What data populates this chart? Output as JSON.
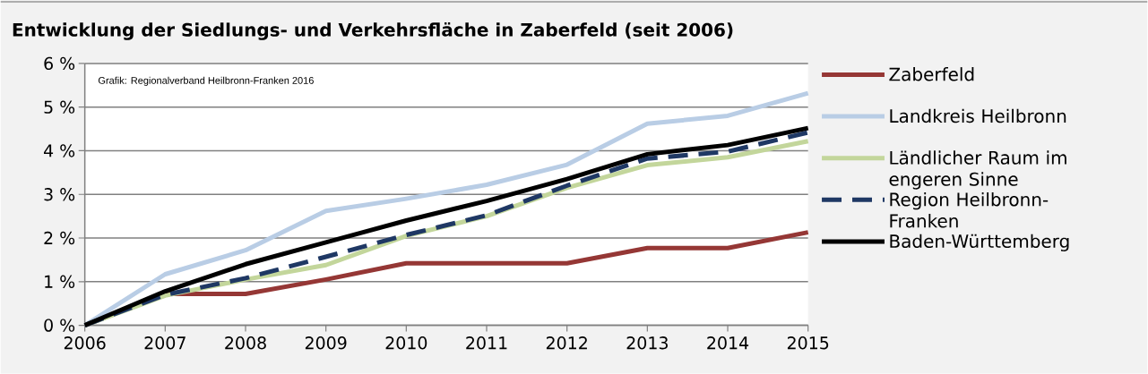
{
  "chart_data": {
    "type": "line",
    "title": "Entwicklung der Siedlungs- und Verkehrsfläche in Zaberfeld (seit 2006)",
    "annotations": [
      "Grafik: Regionalverband Heilbronn-Franken 2016"
    ],
    "x": [
      2006,
      2007,
      2008,
      2009,
      2010,
      2011,
      2012,
      2013,
      2014,
      2015
    ],
    "xlim": [
      2006,
      2015
    ],
    "xticks": [
      2006,
      2007,
      2008,
      2009,
      2010,
      2011,
      2012,
      2013,
      2014,
      2015
    ],
    "ylim": [
      0,
      6
    ],
    "yticks": [
      {
        "value": 0,
        "label": "0 %"
      },
      {
        "value": 1,
        "label": "1 %"
      },
      {
        "value": 2,
        "label": "2 %"
      },
      {
        "value": 3,
        "label": "3 %"
      },
      {
        "value": 4,
        "label": "4 %"
      },
      {
        "value": 5,
        "label": "5 %"
      },
      {
        "value": 6,
        "label": "6 %"
      }
    ],
    "grid": "y",
    "legend": "right",
    "series": [
      {
        "name": "Zaberfeld",
        "color": "#953735",
        "line_style": "solid",
        "values": [
          0,
          0.72,
          0.72,
          1.05,
          1.42,
          1.42,
          1.42,
          1.77,
          1.77,
          2.13
        ]
      },
      {
        "name": "Landkreis Heilbronn",
        "color": "#b9cde5",
        "line_style": "solid",
        "values": [
          0,
          1.17,
          1.72,
          2.62,
          2.9,
          3.22,
          3.68,
          4.62,
          4.8,
          5.32
        ]
      },
      {
        "name": "Ländlicher Raum im engeren Sinne",
        "color": "#c3d69b",
        "line_style": "solid",
        "values": [
          0,
          0.68,
          1.05,
          1.38,
          2.05,
          2.5,
          3.15,
          3.67,
          3.85,
          4.22
        ]
      },
      {
        "name": "Region Heilbronn-Franken",
        "color": "#1f3864",
        "line_style": "dashed",
        "values": [
          0,
          0.7,
          1.08,
          1.57,
          2.07,
          2.52,
          3.2,
          3.82,
          3.98,
          4.42
        ]
      },
      {
        "name": "Baden-Württemberg",
        "color": "#000000",
        "line_style": "solid",
        "values": [
          0,
          0.78,
          1.4,
          1.9,
          2.4,
          2.85,
          3.35,
          3.92,
          4.13,
          4.52
        ]
      }
    ]
  }
}
